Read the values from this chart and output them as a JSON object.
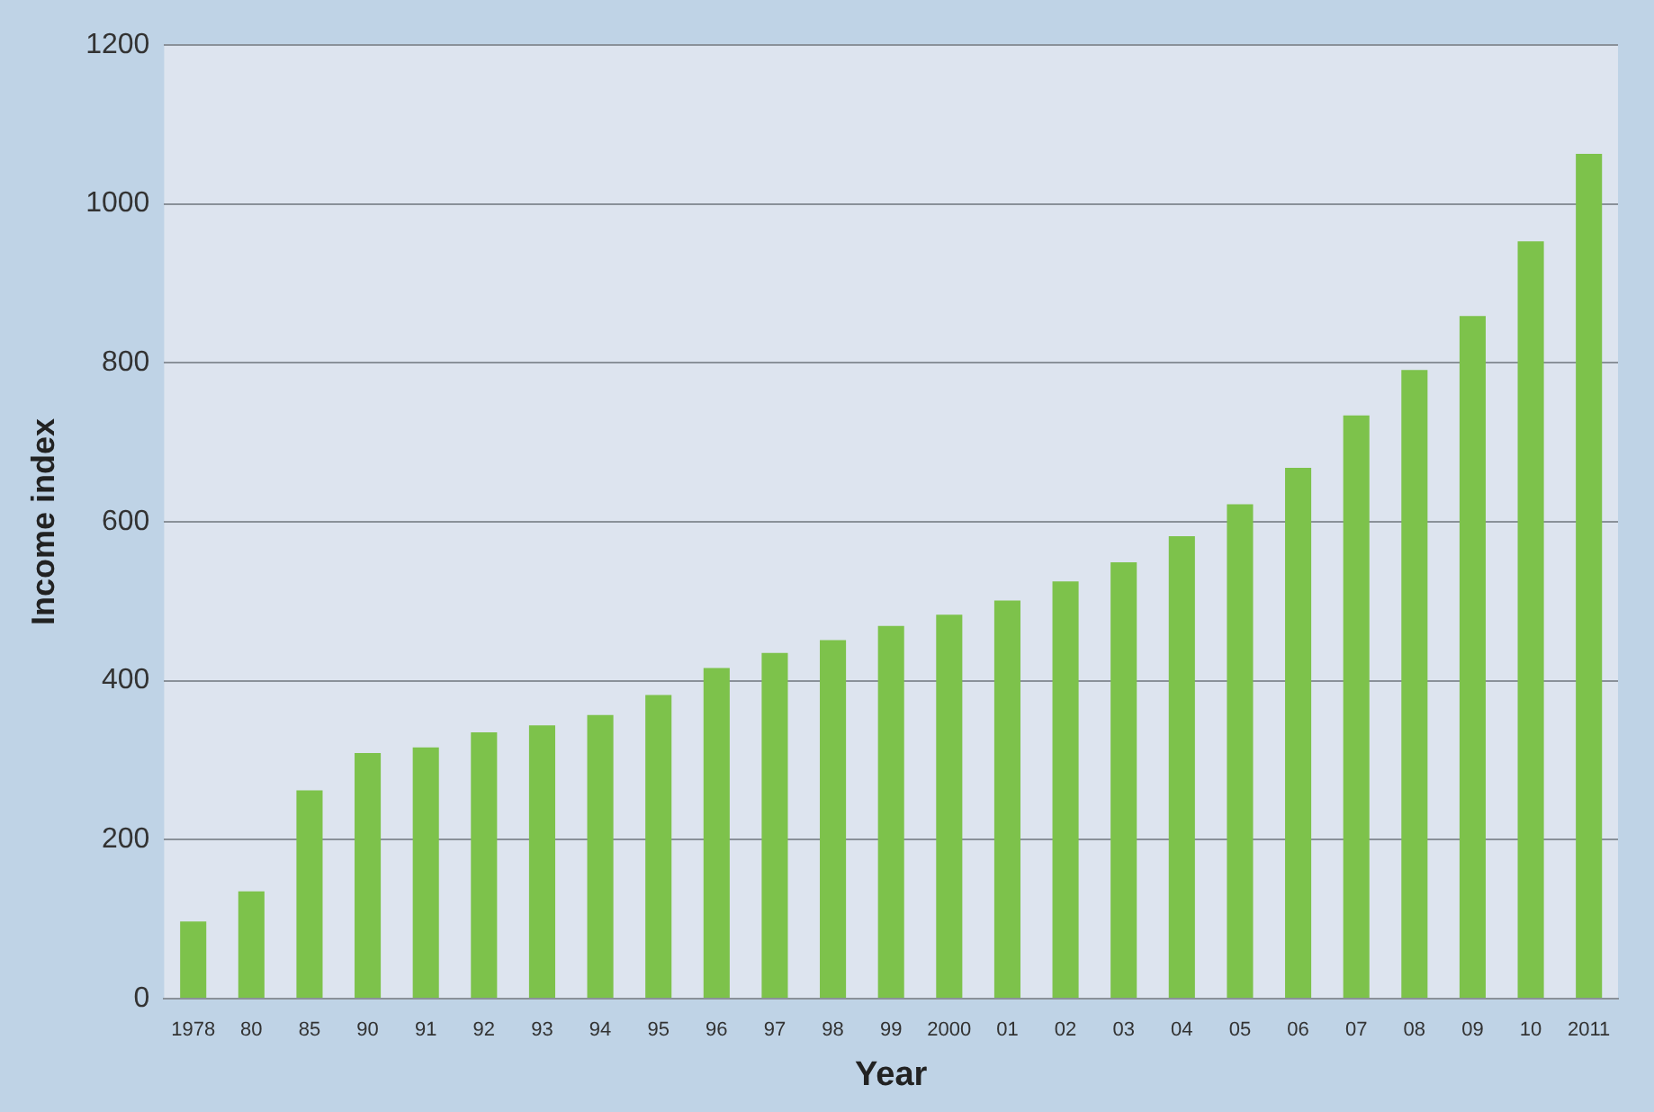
{
  "chart_data": {
    "type": "bar",
    "xlabel": "Year",
    "ylabel": "Income index",
    "categories": [
      "1978",
      "80",
      "85",
      "90",
      "91",
      "92",
      "93",
      "94",
      "95",
      "96",
      "97",
      "98",
      "99",
      "2000",
      "01",
      "02",
      "03",
      "04",
      "05",
      "06",
      "07",
      "08",
      "09",
      "10",
      "2011"
    ],
    "values": [
      97,
      135,
      262,
      309,
      316,
      335,
      344,
      357,
      382,
      416,
      435,
      451,
      469,
      483,
      501,
      525,
      549,
      582,
      622,
      668,
      734,
      791,
      859,
      953,
      1063
    ],
    "color": "#7dc24b",
    "ylim": [
      0,
      1200
    ],
    "yticks": [
      0,
      200,
      400,
      600,
      800,
      1000,
      1200
    ],
    "grid": "y",
    "legend": false
  }
}
